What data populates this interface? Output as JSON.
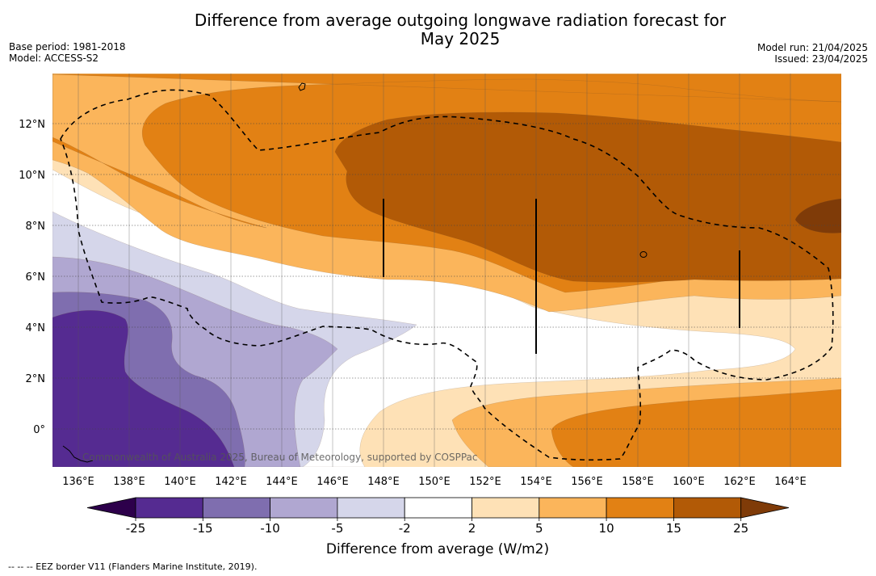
{
  "header": {
    "title_line1": "Difference from average outgoing longwave radiation forecast for",
    "title_line2": "May 2025",
    "base_period": "Base period: 1981-2018",
    "model": "Model: ACCESS-S2",
    "model_run": "Model run: 21/04/2025",
    "issued": "Issued: 23/04/2025"
  },
  "map": {
    "lon_labels": [
      "136°E",
      "138°E",
      "140°E",
      "142°E",
      "144°E",
      "146°E",
      "148°E",
      "150°E",
      "152°E",
      "154°E",
      "156°E",
      "158°E",
      "160°E",
      "162°E",
      "164°E"
    ],
    "lat_labels": [
      "12°N",
      "10°N",
      "8°N",
      "6°N",
      "4°N",
      "2°N",
      "0°"
    ],
    "credit": "Commonwealth of Australia 2025, Bureau of Meteorology, supported by COSPPac",
    "layer_colors": {
      "neg25": "#552b91",
      "neg15": "#7f6eaf",
      "neg10": "#b0a7d1",
      "neg5": "#d5d6ea",
      "neutral": "#ffffff",
      "pos2": "#fee1b6",
      "pos5": "#fbb55b",
      "pos10": "#e28114",
      "pos15": "#b25a06",
      "pos25": "#7f3b08"
    }
  },
  "colorbar": {
    "ticks": [
      "-25",
      "-15",
      "-10",
      "-5",
      "-2",
      "2",
      "5",
      "10",
      "15",
      "25"
    ],
    "colors": [
      "#552b91",
      "#7f6eaf",
      "#b0a7d1",
      "#d5d6ea",
      "#ffffff",
      "#fee1b6",
      "#fbb55b",
      "#e28114",
      "#b25a06"
    ],
    "under_color": "#2d004b",
    "over_color": "#7f3b08",
    "title": "Difference from average (W/m2)"
  },
  "footer": {
    "legend_text": "--  --  -- EEZ border V11 (Flanders Marine Institute, 2019)."
  }
}
